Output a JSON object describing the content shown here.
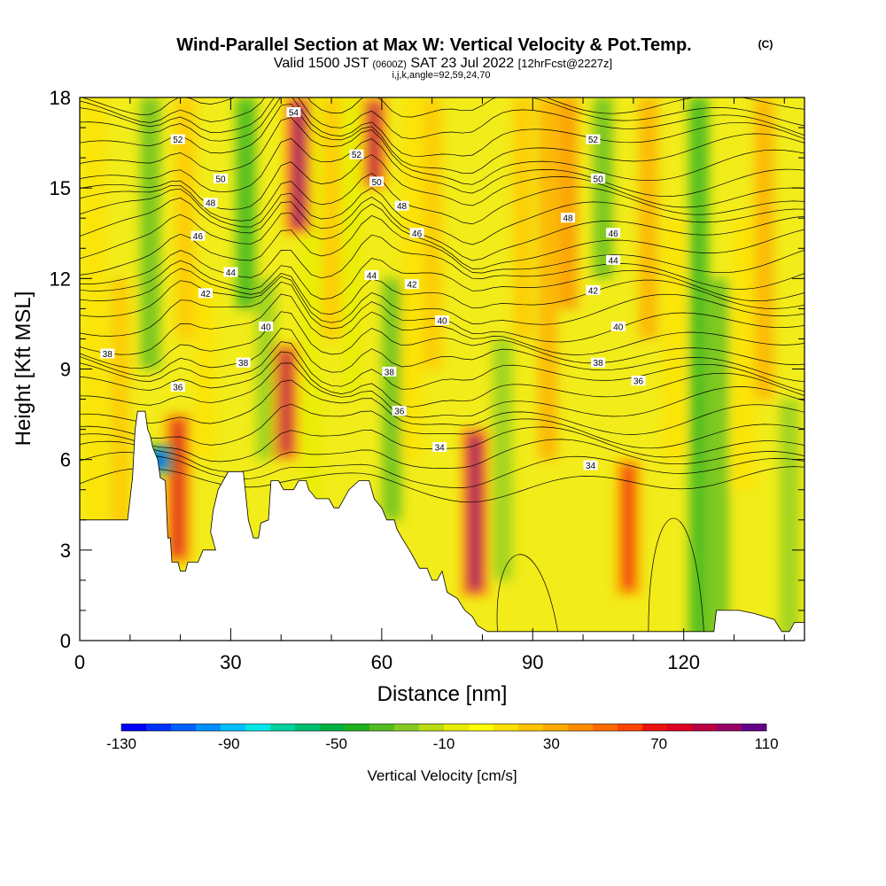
{
  "chart_data": {
    "type": "heatmap",
    "title": "Wind-Parallel Section at Max W: Vertical Velocity & Pot.Temp.",
    "title_suffix": "(C)",
    "subtitle_parts": [
      "Valid 1500 JST",
      "(0600Z)",
      "SAT 23 Jul 2022",
      "[12hrFcst@2227z]"
    ],
    "subtitle2": "i,j,k,angle=92,59,24,70",
    "xlabel": "Distance [nm]",
    "ylabel": "Height [Kft MSL]",
    "xlim": [
      0,
      144
    ],
    "ylim": [
      0,
      18
    ],
    "x_ticks": [
      0,
      30,
      60,
      90,
      120
    ],
    "y_ticks": [
      0,
      3,
      6,
      9,
      12,
      15,
      18
    ],
    "colorbar": {
      "label": "Vertical Velocity [cm/s]",
      "tick_labels": [
        -130,
        -90,
        -50,
        -10,
        30,
        70,
        110
      ],
      "colors": [
        "#0000ff",
        "#0030ff",
        "#0060ff",
        "#0090ff",
        "#00c0ff",
        "#00e8e8",
        "#00d2a0",
        "#00c070",
        "#00b040",
        "#20b020",
        "#55bb22",
        "#88cc22",
        "#bbdd11",
        "#e6ee00",
        "#ffff00",
        "#ffe000",
        "#ffc400",
        "#ffaa00",
        "#ff8c00",
        "#ff6a00",
        "#ff4400",
        "#ee1111",
        "#dd0022",
        "#bb0044",
        "#990066",
        "#660088"
      ]
    },
    "velocity_features": [
      {
        "x": 19.5,
        "y_bottom": 2.6,
        "y_top": 7.5,
        "w_cm_s": 80
      },
      {
        "x": 41.0,
        "y_bottom": 6.0,
        "y_top": 9.8,
        "w_cm_s": 90
      },
      {
        "x": 43.5,
        "y_bottom": 13.5,
        "y_top": 18,
        "w_cm_s": 100
      },
      {
        "x": 58.5,
        "y_bottom": 15.0,
        "y_top": 18,
        "w_cm_s": 90
      },
      {
        "x": 78.5,
        "y_bottom": 1.5,
        "y_top": 7.0,
        "w_cm_s": 100
      },
      {
        "x": 109.0,
        "y_bottom": 1.5,
        "y_top": 6.0,
        "w_cm_s": 70
      },
      {
        "x": 16.0,
        "y_bottom": 5.5,
        "y_top": 6.5,
        "w_cm_s": -110
      }
    ],
    "potential_temperature_labels": [
      {
        "value": "52",
        "x": 19.5,
        "y": 16.6
      },
      {
        "value": "50",
        "x": 28.0,
        "y": 15.3
      },
      {
        "value": "48",
        "x": 26.0,
        "y": 14.5
      },
      {
        "value": "46",
        "x": 23.5,
        "y": 13.4
      },
      {
        "value": "44",
        "x": 30.0,
        "y": 12.2
      },
      {
        "value": "42",
        "x": 25.0,
        "y": 11.5
      },
      {
        "value": "40",
        "x": 37.0,
        "y": 10.4
      },
      {
        "value": "38",
        "x": 5.5,
        "y": 9.5
      },
      {
        "value": "38",
        "x": 32.5,
        "y": 9.2
      },
      {
        "value": "36",
        "x": 19.5,
        "y": 8.4
      },
      {
        "value": "54",
        "x": 42.5,
        "y": 17.5
      },
      {
        "value": "52",
        "x": 55.0,
        "y": 16.1
      },
      {
        "value": "50",
        "x": 59.0,
        "y": 15.2
      },
      {
        "value": "48",
        "x": 64.0,
        "y": 14.4
      },
      {
        "value": "46",
        "x": 67.0,
        "y": 13.5
      },
      {
        "value": "44",
        "x": 58.0,
        "y": 12.1
      },
      {
        "value": "42",
        "x": 66.0,
        "y": 11.8
      },
      {
        "value": "40",
        "x": 72.0,
        "y": 10.6
      },
      {
        "value": "38",
        "x": 61.5,
        "y": 8.9
      },
      {
        "value": "36",
        "x": 63.5,
        "y": 7.6
      },
      {
        "value": "34",
        "x": 71.5,
        "y": 6.4
      },
      {
        "value": "52",
        "x": 102.0,
        "y": 16.6
      },
      {
        "value": "50",
        "x": 103.0,
        "y": 15.3
      },
      {
        "value": "48",
        "x": 97.0,
        "y": 14.0
      },
      {
        "value": "46",
        "x": 106.0,
        "y": 13.5
      },
      {
        "value": "44",
        "x": 106.0,
        "y": 12.6
      },
      {
        "value": "42",
        "x": 102.0,
        "y": 11.6
      },
      {
        "value": "40",
        "x": 107.0,
        "y": 10.4
      },
      {
        "value": "38",
        "x": 103.0,
        "y": 9.2
      },
      {
        "value": "36",
        "x": 111.0,
        "y": 8.6
      },
      {
        "value": "34",
        "x": 101.5,
        "y": 5.8
      }
    ],
    "terrain_profile": [
      [
        0,
        4.0
      ],
      [
        2.5,
        4.0
      ],
      [
        2.5,
        4.0
      ],
      [
        7.5,
        4.0
      ],
      [
        7.5,
        4.0
      ],
      [
        9.5,
        4.0
      ],
      [
        10.5,
        5.4
      ],
      [
        11,
        7.0
      ],
      [
        11.5,
        7.6
      ],
      [
        13,
        7.6
      ],
      [
        13.5,
        7.0
      ],
      [
        14,
        6.8
      ],
      [
        14.5,
        6.4
      ],
      [
        15.5,
        6.0
      ],
      [
        16,
        5.4
      ],
      [
        17,
        5.3
      ],
      [
        17.5,
        3.4
      ],
      [
        18,
        3.4
      ],
      [
        18.3,
        2.6
      ],
      [
        19.5,
        2.6
      ],
      [
        20,
        2.3
      ],
      [
        21,
        2.3
      ],
      [
        21.5,
        2.6
      ],
      [
        23.5,
        2.6
      ],
      [
        24.5,
        3.0
      ],
      [
        25.5,
        3.0
      ],
      [
        26,
        3.0
      ],
      [
        27,
        3.0
      ],
      [
        26,
        3.6
      ],
      [
        26.5,
        4.3
      ],
      [
        27.5,
        5.0
      ],
      [
        28.5,
        5.3
      ],
      [
        29.5,
        5.6
      ],
      [
        32.5,
        5.6
      ],
      [
        33,
        4.8
      ],
      [
        33.5,
        4.0
      ],
      [
        34.5,
        3.4
      ],
      [
        35.5,
        3.4
      ],
      [
        36,
        3.9
      ],
      [
        37.5,
        4.0
      ],
      [
        38,
        5.3
      ],
      [
        39.5,
        5.3
      ],
      [
        40.5,
        5.0
      ],
      [
        42.5,
        5.0
      ],
      [
        43.5,
        5.3
      ],
      [
        45,
        5.3
      ],
      [
        45.5,
        5.0
      ],
      [
        47,
        4.7
      ],
      [
        49.5,
        4.7
      ],
      [
        50.5,
        4.4
      ],
      [
        51.5,
        4.4
      ],
      [
        52.5,
        4.7
      ],
      [
        53.5,
        5.0
      ],
      [
        55.5,
        5.3
      ],
      [
        57.5,
        5.3
      ],
      [
        58,
        5.0
      ],
      [
        58.5,
        4.7
      ],
      [
        60,
        4.4
      ],
      [
        61,
        4.0
      ],
      [
        62.5,
        4.0
      ],
      [
        63,
        3.7
      ],
      [
        64,
        3.4
      ],
      [
        65.5,
        3.0
      ],
      [
        66.5,
        2.7
      ],
      [
        67.5,
        2.4
      ],
      [
        69,
        2.4
      ],
      [
        70,
        2.0
      ],
      [
        71,
        2.0
      ],
      [
        72,
        2.3
      ],
      [
        73,
        1.6
      ],
      [
        75,
        1.4
      ],
      [
        76.5,
        1.0
      ],
      [
        78,
        0.8
      ],
      [
        79,
        0.5
      ],
      [
        81,
        0.3
      ],
      [
        85,
        0.3
      ],
      [
        100,
        0.3
      ],
      [
        120,
        0.3
      ],
      [
        126,
        0.3
      ],
      [
        126.5,
        1.0
      ],
      [
        131,
        1.0
      ],
      [
        134,
        0.9
      ],
      [
        138,
        0.7
      ],
      [
        139.5,
        0.3
      ],
      [
        141,
        0.3
      ],
      [
        142,
        0.6
      ],
      [
        144,
        0.6
      ]
    ]
  }
}
